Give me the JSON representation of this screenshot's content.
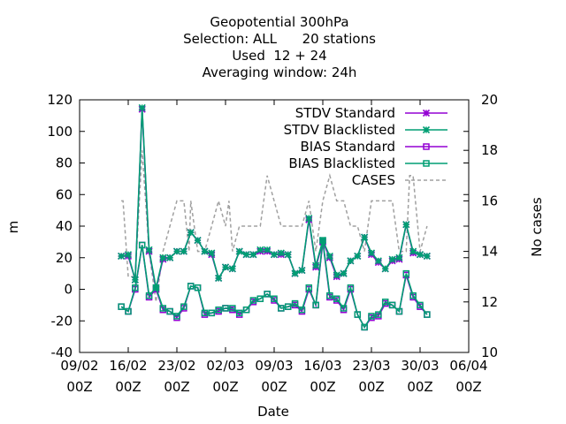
{
  "chart_data": {
    "type": "line",
    "title_lines": [
      "Geopotential 300hPa",
      "Selection: ALL      20 stations",
      "Used  12 + 24",
      "Averaging window: 24h"
    ],
    "xlabel": "Date",
    "ylabel": "m",
    "y2label": "No cases",
    "xlim": [
      "2025-02-09",
      "2025-04-06"
    ],
    "ylim": [
      -40,
      120
    ],
    "y2lim": [
      10,
      20
    ],
    "x_ticks": [
      {
        "line1": "09/02",
        "line2": "00Z"
      },
      {
        "line1": "16/02",
        "line2": "00Z"
      },
      {
        "line1": "23/02",
        "line2": "00Z"
      },
      {
        "line1": "02/03",
        "line2": "00Z"
      },
      {
        "line1": "09/03",
        "line2": "00Z"
      },
      {
        "line1": "16/03",
        "line2": "00Z"
      },
      {
        "line1": "23/03",
        "line2": "00Z"
      },
      {
        "line1": "30/03",
        "line2": "00Z"
      },
      {
        "line1": "06/04",
        "line2": "00Z"
      }
    ],
    "y_ticks": [
      "120",
      "100",
      "80",
      "60",
      "40",
      "20",
      "0",
      "-20",
      "-40"
    ],
    "y2_ticks": [
      "20",
      "18",
      "16",
      "14",
      "12",
      "10"
    ],
    "legend_position": "top-right",
    "x": [
      "2025-02-15",
      "2025-02-16",
      "2025-02-17",
      "2025-02-18",
      "2025-02-19",
      "2025-02-20",
      "2025-02-21",
      "2025-02-22",
      "2025-02-23",
      "2025-02-24",
      "2025-02-25",
      "2025-02-26",
      "2025-02-27",
      "2025-02-28",
      "2025-03-01",
      "2025-03-02",
      "2025-03-03",
      "2025-03-04",
      "2025-03-05",
      "2025-03-06",
      "2025-03-07",
      "2025-03-08",
      "2025-03-09",
      "2025-03-10",
      "2025-03-11",
      "2025-03-12",
      "2025-03-13",
      "2025-03-14",
      "2025-03-15",
      "2025-03-16",
      "2025-03-17",
      "2025-03-18",
      "2025-03-19",
      "2025-03-20",
      "2025-03-21",
      "2025-03-22",
      "2025-03-23",
      "2025-03-24",
      "2025-03-25",
      "2025-03-26",
      "2025-03-27",
      "2025-03-28",
      "2025-03-29",
      "2025-03-30",
      "2025-03-31"
    ],
    "series": [
      {
        "name": "STDV Standard",
        "color": "#9400d3",
        "marker": "star",
        "dash": "none",
        "values": [
          21,
          21,
          6,
          114,
          24,
          0,
          19,
          20,
          24,
          24,
          36,
          31,
          24,
          22,
          7,
          14,
          13,
          24,
          22,
          22,
          24,
          24,
          22,
          22,
          22,
          10,
          12,
          44,
          14,
          30,
          20,
          8,
          10,
          18,
          21,
          33,
          22,
          17,
          13,
          18,
          19,
          41,
          23,
          22,
          21
        ]
      },
      {
        "name": "STDV Blacklisted",
        "color": "#009e73",
        "marker": "star",
        "dash": "none",
        "values": [
          21,
          22,
          6,
          115,
          25,
          1,
          20,
          20,
          24,
          24,
          36,
          31,
          24,
          23,
          7,
          14,
          13,
          24,
          22,
          22,
          25,
          25,
          22,
          23,
          22,
          10,
          12,
          45,
          15,
          31,
          21,
          9,
          10,
          18,
          21,
          33,
          23,
          18,
          13,
          19,
          20,
          41,
          24,
          22,
          21
        ]
      },
      {
        "name": "BIAS Standard",
        "color": "#9400d3",
        "marker": "square",
        "dash": "none",
        "values": [
          -11,
          -14,
          0,
          28,
          -5,
          0,
          -13,
          -14,
          -18,
          -12,
          2,
          1,
          -16,
          -15,
          -14,
          -12,
          -13,
          -16,
          -13,
          -8,
          -6,
          -3,
          -7,
          -12,
          -11,
          -10,
          -14,
          0,
          -10,
          30,
          -5,
          -7,
          -13,
          0,
          -16,
          -24,
          -18,
          -17,
          -9,
          -10,
          -14,
          9,
          -5,
          -11,
          -16
        ]
      },
      {
        "name": "BIAS Blacklisted",
        "color": "#009e73",
        "marker": "square",
        "dash": "none",
        "values": [
          -11,
          -14,
          1,
          28,
          -4,
          1,
          -12,
          -14,
          -17,
          -11,
          2,
          1,
          -15,
          -15,
          -13,
          -12,
          -12,
          -15,
          -13,
          -7,
          -6,
          -3,
          -6,
          -12,
          -11,
          -9,
          -13,
          1,
          -10,
          31,
          -4,
          -6,
          -12,
          1,
          -16,
          -24,
          -17,
          -16,
          -8,
          -10,
          -14,
          10,
          -4,
          -10,
          -16
        ]
      },
      {
        "name": "CASES",
        "color": "#a0a0a0",
        "marker": "none",
        "dash": "dashed",
        "axis": "y2",
        "x": [
          "2025-02-15",
          "2025-02-15T06",
          "2025-02-16",
          "2025-02-17",
          "2025-02-18",
          "2025-02-19",
          "2025-02-20",
          "2025-02-20T12",
          "2025-02-21",
          "2025-02-22",
          "2025-02-23",
          "2025-02-24",
          "2025-02-24T18",
          "2025-02-25",
          "2025-02-26",
          "2025-02-27",
          "2025-02-28",
          "2025-03-01",
          "2025-03-02",
          "2025-03-02T12",
          "2025-03-03",
          "2025-03-04",
          "2025-03-05",
          "2025-03-06",
          "2025-03-07",
          "2025-03-08",
          "2025-03-09",
          "2025-03-10",
          "2025-03-11",
          "2025-03-12",
          "2025-03-13",
          "2025-03-14",
          "2025-03-15",
          "2025-03-16",
          "2025-03-17",
          "2025-03-18",
          "2025-03-19",
          "2025-03-20",
          "2025-03-21",
          "2025-03-22",
          "2025-03-23",
          "2025-03-24",
          "2025-03-25",
          "2025-03-26",
          "2025-03-27",
          "2025-03-28",
          "2025-03-28T12",
          "2025-03-29",
          "2025-03-30",
          "2025-03-31"
        ],
        "values": [
          16,
          16,
          13,
          13,
          18,
          14,
          12,
          13,
          14,
          15,
          16,
          16,
          14,
          16,
          14,
          14,
          15,
          16,
          15,
          16,
          14,
          15,
          15,
          15,
          15,
          17,
          16,
          15,
          15,
          15,
          15,
          16,
          14,
          16,
          17,
          16,
          16,
          15,
          15,
          14,
          16,
          16,
          16,
          16,
          14,
          14,
          17,
          17,
          14,
          15
        ]
      }
    ]
  }
}
